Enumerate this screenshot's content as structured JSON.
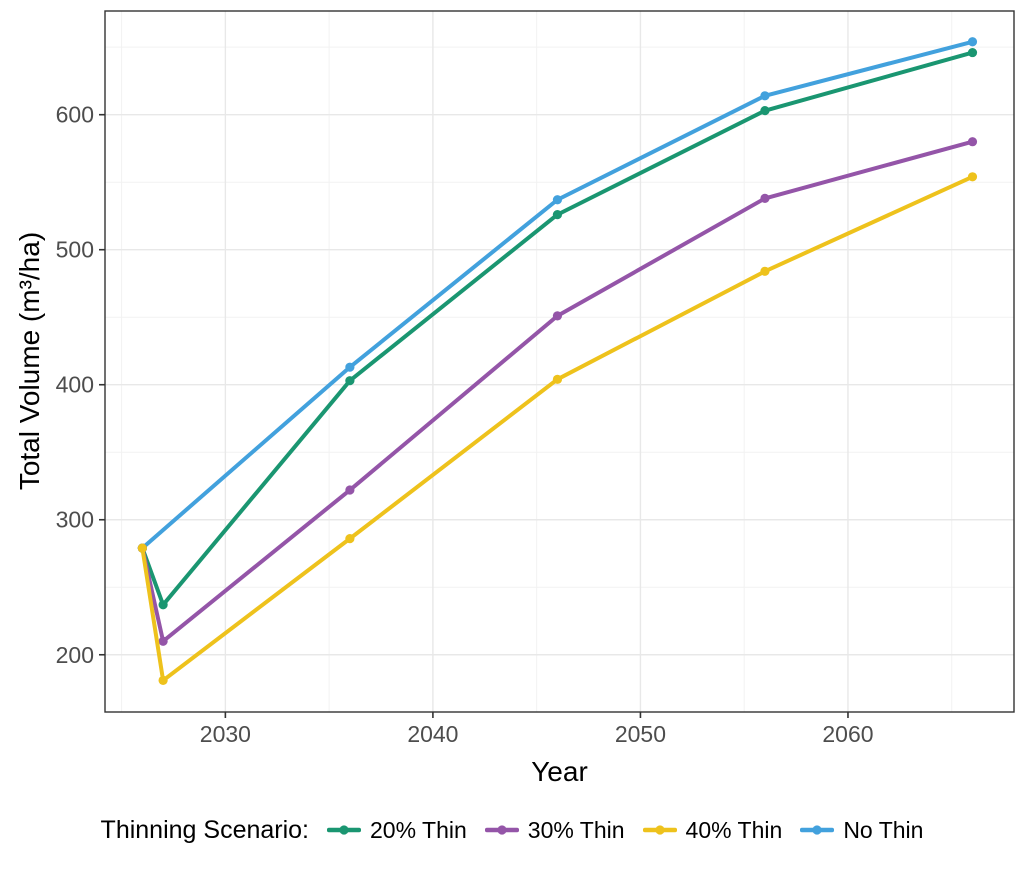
{
  "chart_data": {
    "type": "line",
    "title": "",
    "xlabel": "Year",
    "ylabel": "Total Volume (m³/ha)",
    "legend_title": "Thinning Scenario:",
    "legend_position": "bottom",
    "grid": true,
    "xlim": [
      2024.2,
      2068.0
    ],
    "ylim": [
      157.6,
      676.8
    ],
    "x_ticks": [
      2030,
      2040,
      2050,
      2060
    ],
    "y_ticks": [
      200,
      300,
      400,
      500,
      600
    ],
    "x_minor_ticks": [
      2025,
      2035,
      2045,
      2055,
      2065
    ],
    "y_minor_ticks": [
      250,
      350,
      450,
      550,
      650
    ],
    "series": [
      {
        "name": "No Thin",
        "color": "#42a1dd",
        "x": [
          2026,
          2036,
          2046,
          2056,
          2066
        ],
        "y": [
          279,
          413,
          537,
          614,
          654
        ]
      },
      {
        "name": "20% Thin",
        "color": "#1a9671",
        "x": [
          2026,
          2027,
          2036,
          2046,
          2056,
          2066
        ],
        "y": [
          279,
          237,
          403,
          526,
          603,
          646
        ]
      },
      {
        "name": "30% Thin",
        "color": "#9455a8",
        "x": [
          2026,
          2027,
          2036,
          2046,
          2056,
          2066
        ],
        "y": [
          279,
          210,
          322,
          451,
          538,
          580
        ]
      },
      {
        "name": "40% Thin",
        "color": "#eec21c",
        "x": [
          2026,
          2027,
          2036,
          2046,
          2056,
          2066
        ],
        "y": [
          279,
          181,
          286,
          404,
          484,
          554
        ]
      }
    ],
    "legend_order": [
      "20% Thin",
      "30% Thin",
      "40% Thin",
      "No Thin"
    ],
    "colors": {
      "tick_label": "#4d4d4d",
      "axis_line": "#333333",
      "grid_major": "#e8e8e8",
      "grid_minor": "#f2f2f2",
      "background": "#ffffff"
    }
  }
}
